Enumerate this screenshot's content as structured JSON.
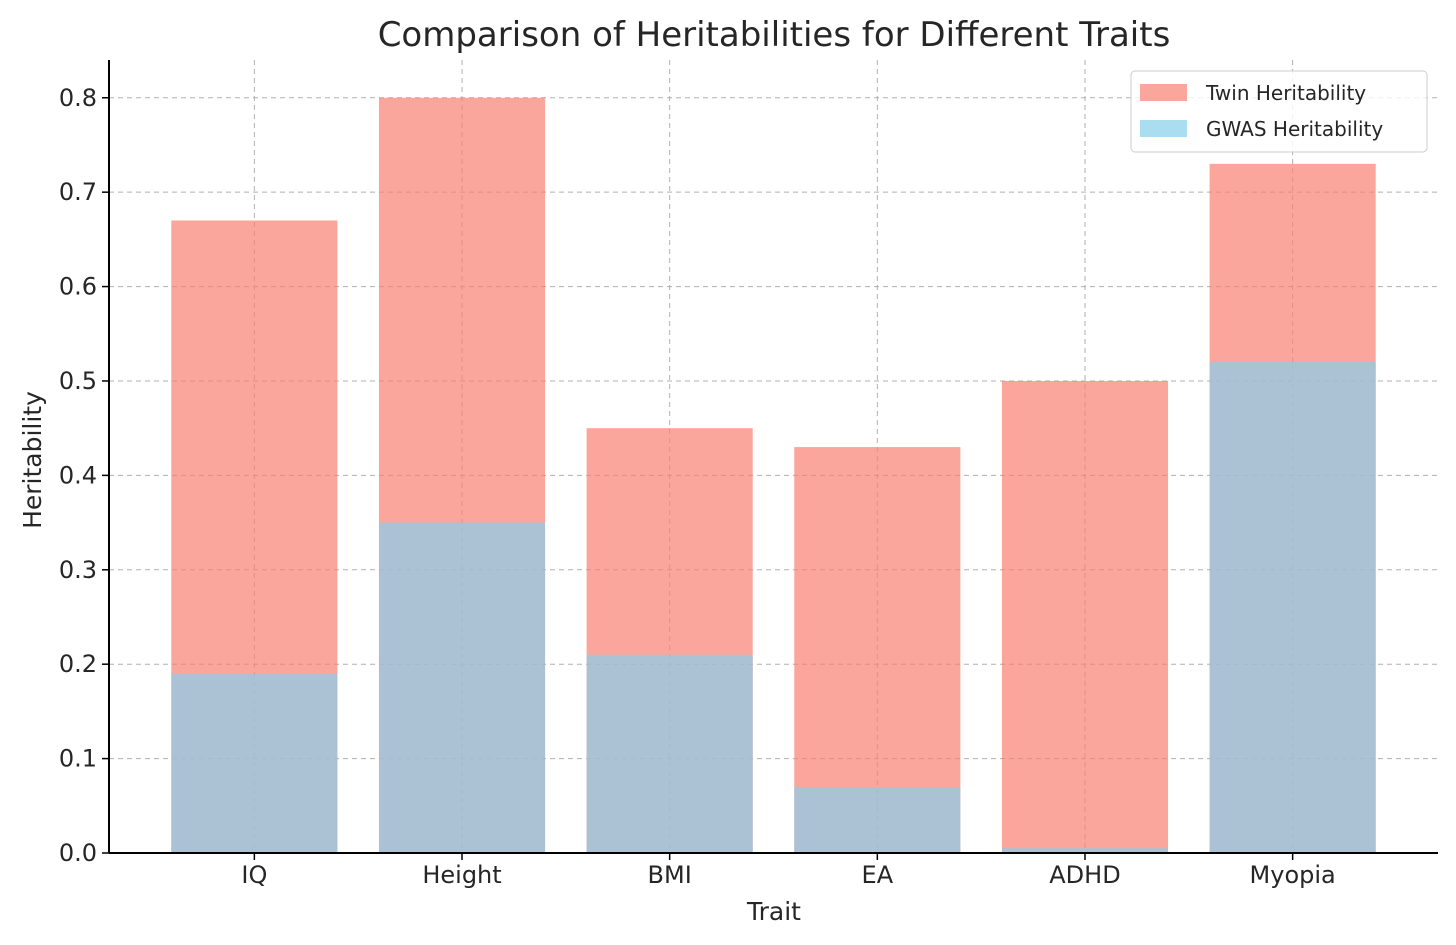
{
  "chart_data": {
    "type": "bar",
    "title": "Comparison of Heritabilities for Different Traits",
    "xlabel": "Trait",
    "ylabel": "Heritability",
    "categories": [
      "IQ",
      "Height",
      "BMI",
      "EA",
      "ADHD",
      "Myopia"
    ],
    "series": [
      {
        "name": "Twin Heritability",
        "color": "#fa8072",
        "opacity": 0.7,
        "values": [
          0.67,
          0.8,
          0.45,
          0.43,
          0.5,
          0.73
        ]
      },
      {
        "name": "GWAS Heritability",
        "color": "#87ceeb",
        "opacity": 0.7,
        "values": [
          0.19,
          0.35,
          0.21,
          0.07,
          0.005,
          0.52
        ]
      }
    ],
    "ylim": [
      0,
      0.84
    ],
    "yticks": [
      "0.0",
      "0.1",
      "0.2",
      "0.3",
      "0.4",
      "0.5",
      "0.6",
      "0.7",
      "0.8"
    ],
    "grid": true,
    "legend_position": "top-right"
  }
}
